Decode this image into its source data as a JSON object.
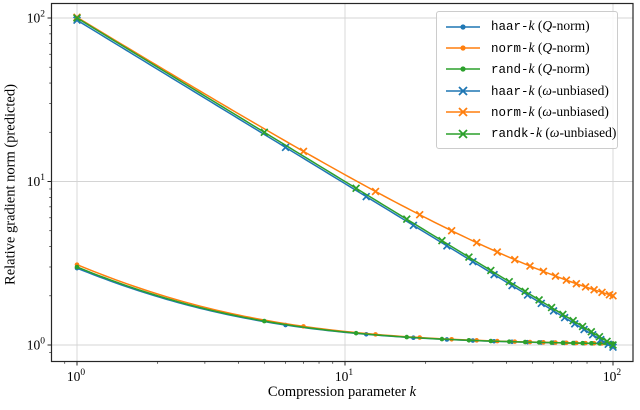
{
  "figure": {
    "background": "#ffffff"
  },
  "chart_data": {
    "type": "line",
    "x_scale": "log",
    "y_scale": "log",
    "grid": true,
    "legend_position": "upper right",
    "xlabel": {
      "text": "Compression parameter ",
      "var": "k"
    },
    "ylabel": "Relative gradient norm (predicted)",
    "xlim": [
      0.8,
      119
    ],
    "ylim": [
      0.79,
      123
    ],
    "x_ticks": [
      {
        "base": "10",
        "exp": "0",
        "value": 1
      },
      {
        "base": "10",
        "exp": "1",
        "value": 10
      },
      {
        "base": "10",
        "exp": "2",
        "value": 100
      }
    ],
    "y_ticks": [
      {
        "base": "10",
        "exp": "0",
        "value": 1
      },
      {
        "base": "10",
        "exp": "1",
        "value": 10
      },
      {
        "base": "10",
        "exp": "2",
        "value": 100
      }
    ],
    "colors": {
      "blue": "#1f77b4",
      "orange": "#ff7f0e",
      "green": "#2ca02c",
      "grid": "#d4d4d4",
      "spine": "#262626"
    },
    "series": [
      {
        "name": "haar-k-q-norm",
        "label": "haar-k (Q-norm)",
        "label_parts": {
          "code": "haar-",
          "var1": "k",
          "open": " (",
          "var2": "Q",
          "rest": "-norm)"
        },
        "color": "#1f77b4",
        "marker": "dot",
        "model": {
          "form": "y = b + a/k",
          "a": 1.95,
          "b": 1
        },
        "marker_phase": 6,
        "marker_step": 6,
        "sample_points": {
          "k": [
            1,
            2,
            5,
            10,
            20,
            50,
            100
          ],
          "y": [
            2.95,
            1.98,
            1.39,
            1.2,
            1.1,
            1.04,
            1.02
          ]
        }
      },
      {
        "name": "norm-k-q-norm",
        "label": "norm-k (Q-norm)",
        "label_parts": {
          "code": "norm-",
          "var1": "k",
          "open": " (",
          "var2": "Q",
          "rest": "-norm)"
        },
        "color": "#ff7f0e",
        "marker": "dot",
        "model": {
          "form": "y = b + a/k",
          "a": 2.1,
          "b": 1
        },
        "marker_phase": 7,
        "marker_step": 6,
        "sample_points": {
          "k": [
            1,
            2,
            5,
            10,
            20,
            50,
            100
          ],
          "y": [
            3.1,
            2.05,
            1.42,
            1.21,
            1.11,
            1.04,
            1.02
          ]
        }
      },
      {
        "name": "rand-k-q-norm",
        "label": "rand-k (Q-norm)",
        "label_parts": {
          "code": "rand-",
          "var1": "k",
          "open": " (",
          "var2": "Q",
          "rest": "-norm)"
        },
        "color": "#2ca02c",
        "marker": "dot",
        "model": {
          "form": "y = b + a/k",
          "a": 2.0,
          "b": 1
        },
        "marker_phase": 5,
        "marker_step": 6,
        "sample_points": {
          "k": [
            1,
            2,
            5,
            10,
            20,
            50,
            100
          ],
          "y": [
            3.0,
            2.0,
            1.4,
            1.2,
            1.1,
            1.04,
            1.02
          ]
        }
      },
      {
        "name": "haar-k-omega-unbiased",
        "label": "haar-k (ω-unbiased)",
        "label_parts": {
          "code": "haar-",
          "var1": "k",
          "open": " (",
          "var2": "ω",
          "rest": "-unbiased)"
        },
        "color": "#1f77b4",
        "marker": "x",
        "model": {
          "form": "y = b + a/k",
          "a": 97,
          "b": 0
        },
        "marker_phase": 6,
        "marker_step": 6,
        "sample_points": {
          "k": [
            1,
            2,
            5,
            10,
            20,
            50,
            100
          ],
          "y": [
            97,
            48.5,
            19.4,
            9.7,
            4.85,
            1.94,
            0.97
          ]
        }
      },
      {
        "name": "norm-k-omega-unbiased",
        "label": "norm-k (ω-unbiased)",
        "label_parts": {
          "code": "norm-",
          "var1": "k",
          "open": " (",
          "var2": "ω",
          "rest": "-unbiased)"
        },
        "color": "#ff7f0e",
        "marker": "x",
        "model": {
          "form": "y = b + a/k",
          "a": 100,
          "b": 1
        },
        "marker_phase": 7,
        "marker_step": 6,
        "sample_points": {
          "k": [
            1,
            2,
            5,
            10,
            20,
            50,
            100
          ],
          "y": [
            101,
            51,
            21,
            11,
            6,
            3,
            2
          ]
        }
      },
      {
        "name": "randk-k-omega-unbiased",
        "label": "randk-k (ω-unbiased)",
        "label_parts": {
          "code": "randk-",
          "var1": "k",
          "open": " (",
          "var2": "ω",
          "rest": "-unbiased)"
        },
        "color": "#2ca02c",
        "marker": "x",
        "model": {
          "form": "y = b + a/k",
          "a": 100,
          "b": 0
        },
        "marker_phase": 5,
        "marker_step": 6,
        "sample_points": {
          "k": [
            1,
            2,
            5,
            10,
            20,
            50,
            100
          ],
          "y": [
            100,
            50,
            20,
            10,
            5,
            2,
            1
          ]
        }
      }
    ]
  }
}
